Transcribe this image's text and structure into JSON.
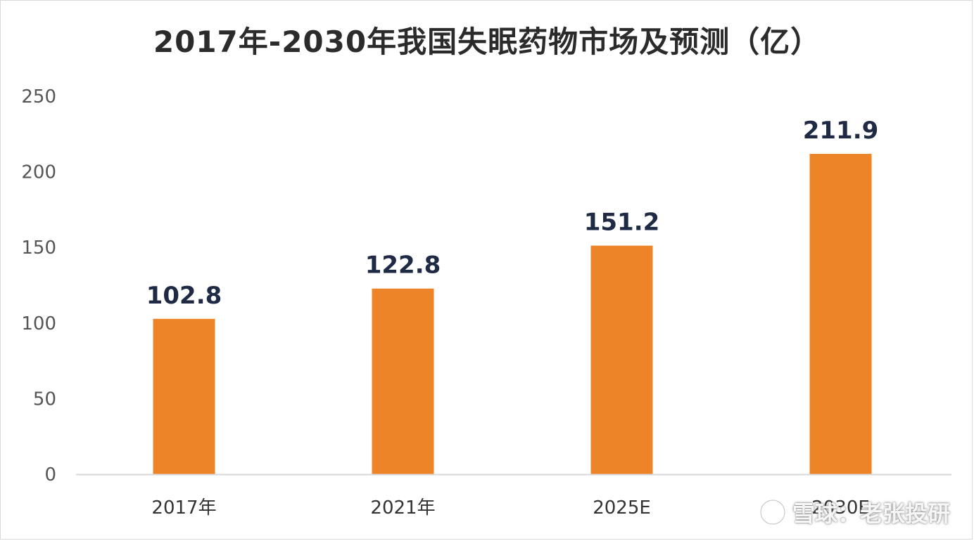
{
  "chart_data": {
    "type": "bar",
    "title": "2017年-2030年我国失眠药物市场及预测（亿）",
    "categories": [
      "2017年",
      "2021年",
      "2025E",
      "2030E"
    ],
    "values": [
      102.8,
      122.8,
      151.2,
      211.9
    ],
    "data_labels": [
      "102.8",
      "122.8",
      "151.2",
      "211.9"
    ],
    "ylim": [
      0,
      250
    ],
    "yticks": [
      0,
      50,
      100,
      150,
      200,
      250
    ],
    "ytick_labels": [
      "0",
      "50",
      "100",
      "150",
      "200",
      "250"
    ],
    "xlabel": "",
    "ylabel": "",
    "grid": false,
    "bar_color": "#ed8428"
  },
  "watermark": {
    "text": "雪球：老张投研",
    "icon": "xueqiu-logo-icon"
  }
}
